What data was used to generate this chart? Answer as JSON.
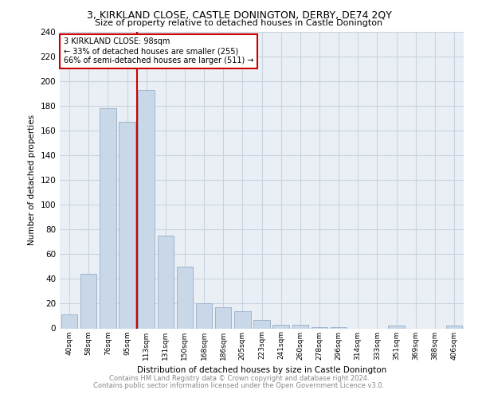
{
  "title1": "3, KIRKLAND CLOSE, CASTLE DONINGTON, DERBY, DE74 2QY",
  "title2": "Size of property relative to detached houses in Castle Donington",
  "xlabel": "Distribution of detached houses by size in Castle Donington",
  "ylabel": "Number of detached properties",
  "categories": [
    "40sqm",
    "58sqm",
    "76sqm",
    "95sqm",
    "113sqm",
    "131sqm",
    "150sqm",
    "168sqm",
    "186sqm",
    "205sqm",
    "223sqm",
    "241sqm",
    "260sqm",
    "278sqm",
    "296sqm",
    "314sqm",
    "333sqm",
    "351sqm",
    "369sqm",
    "388sqm",
    "406sqm"
  ],
  "values": [
    11,
    44,
    178,
    167,
    193,
    75,
    50,
    20,
    17,
    14,
    7,
    3,
    3,
    1,
    1,
    0,
    0,
    2,
    0,
    0,
    2
  ],
  "bar_color": "#c8d8e8",
  "bar_edge_color": "#a0b4cc",
  "property_line_color": "#cc0000",
  "annotation_line1": "3 KIRKLAND CLOSE: 98sqm",
  "annotation_line2": "← 33% of detached houses are smaller (255)",
  "annotation_line3": "66% of semi-detached houses are larger (511) →",
  "annotation_box_color": "#cc0000",
  "ylim": [
    0,
    240
  ],
  "yticks": [
    0,
    20,
    40,
    60,
    80,
    100,
    120,
    140,
    160,
    180,
    200,
    220,
    240
  ],
  "grid_color": "#c8d4e0",
  "bg_color": "#eaeff5",
  "footer1": "Contains HM Land Registry data © Crown copyright and database right 2024.",
  "footer2": "Contains public sector information licensed under the Open Government Licence v3.0."
}
